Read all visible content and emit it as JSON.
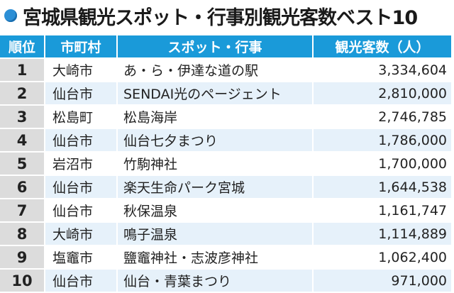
{
  "title": "宮城県観光スポット・行事別観光客数ベスト10",
  "colors": {
    "header": "#1a9ad9",
    "accent_dot": "#2c8fd6",
    "rank_cell": "#dcdcdc",
    "stripe": "#e6f1fa"
  },
  "table": {
    "headers": [
      "順位",
      "市町村",
      "スポット・行事",
      "観光客数（人）"
    ],
    "rows": [
      {
        "rank": "1",
        "city": "大崎市",
        "spot": "あ・ら・伊達な道の駅",
        "count": "3,334,604"
      },
      {
        "rank": "2",
        "city": "仙台市",
        "spot": "SENDAI光のページェント",
        "count": "2,810,000"
      },
      {
        "rank": "3",
        "city": "松島町",
        "spot": "松島海岸",
        "count": "2,746,785"
      },
      {
        "rank": "4",
        "city": "仙台市",
        "spot": "仙台七夕まつり",
        "count": "1,786,000"
      },
      {
        "rank": "5",
        "city": "岩沼市",
        "spot": "竹駒神社",
        "count": "1,700,000"
      },
      {
        "rank": "6",
        "city": "仙台市",
        "spot": "楽天生命パーク宮城",
        "count": "1,644,538"
      },
      {
        "rank": "7",
        "city": "仙台市",
        "spot": "秋保温泉",
        "count": "1,161,747"
      },
      {
        "rank": "8",
        "city": "大崎市",
        "spot": "鳴子温泉",
        "count": "1,114,889"
      },
      {
        "rank": "9",
        "city": "塩竈市",
        "spot": "鹽竈神社・志波彦神社",
        "count": "1,062,400"
      },
      {
        "rank": "10",
        "city": "仙台市",
        "spot": "仙台・青葉まつり",
        "count": "971,000"
      }
    ]
  }
}
